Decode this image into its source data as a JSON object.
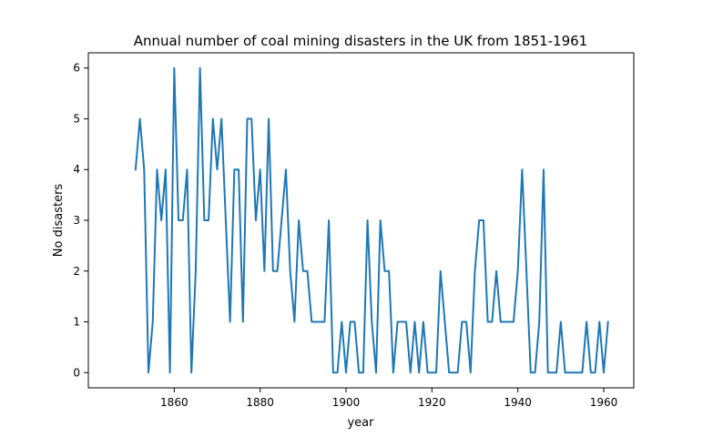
{
  "chart_data": {
    "type": "line",
    "title": "Annual number of coal mining disasters in the UK from 1851-1961",
    "xlabel": "year",
    "ylabel": "No disasters",
    "xlim": [
      1840,
      1967
    ],
    "ylim": [
      -0.3,
      6.3
    ],
    "xticks": [
      1860,
      1880,
      1900,
      1920,
      1940,
      1960
    ],
    "yticks": [
      0,
      1,
      2,
      3,
      4,
      5,
      6
    ],
    "grid": false,
    "legend": "none",
    "line_color": "#1f77b4",
    "series": [
      {
        "x": [
          1851,
          1852,
          1853,
          1854,
          1855,
          1856,
          1857,
          1858,
          1859,
          1860,
          1861,
          1862,
          1863,
          1864,
          1865,
          1866,
          1867,
          1868,
          1869,
          1870,
          1871,
          1872,
          1873,
          1874,
          1875,
          1876,
          1877,
          1878,
          1879,
          1880,
          1881,
          1882,
          1883,
          1884,
          1885,
          1886,
          1887,
          1888,
          1889,
          1890,
          1891,
          1892,
          1893,
          1894,
          1895,
          1896,
          1897,
          1898,
          1899,
          1900,
          1901,
          1902,
          1903,
          1904,
          1905,
          1906,
          1907,
          1908,
          1909,
          1910,
          1911,
          1912,
          1913,
          1914,
          1915,
          1916,
          1917,
          1918,
          1919,
          1920,
          1921,
          1922,
          1923,
          1924,
          1925,
          1926,
          1927,
          1928,
          1929,
          1930,
          1931,
          1932,
          1933,
          1934,
          1935,
          1936,
          1937,
          1938,
          1939,
          1940,
          1941,
          1942,
          1943,
          1944,
          1945,
          1946,
          1947,
          1948,
          1949,
          1950,
          1951,
          1952,
          1953,
          1954,
          1955,
          1956,
          1957,
          1958,
          1959,
          1960,
          1961
        ],
        "values": [
          4,
          5,
          4,
          0,
          1,
          4,
          3,
          4,
          0,
          6,
          3,
          3,
          4,
          0,
          2,
          6,
          3,
          3,
          5,
          4,
          5,
          3,
          1,
          4,
          4,
          1,
          5,
          5,
          3,
          4,
          2,
          5,
          2,
          2,
          3,
          4,
          2,
          1,
          3,
          2,
          2,
          1,
          1,
          1,
          1,
          3,
          0,
          0,
          1,
          0,
          1,
          1,
          0,
          0,
          3,
          1,
          0,
          3,
          2,
          2,
          0,
          1,
          1,
          1,
          0,
          1,
          0,
          1,
          0,
          0,
          0,
          2,
          1,
          0,
          0,
          0,
          1,
          1,
          0,
          2,
          3,
          3,
          1,
          1,
          2,
          1,
          1,
          1,
          1,
          2,
          4,
          2,
          0,
          0,
          1,
          4,
          0,
          0,
          0,
          1,
          0,
          0,
          0,
          0,
          0,
          1,
          0,
          0,
          1,
          0,
          1
        ]
      }
    ]
  }
}
